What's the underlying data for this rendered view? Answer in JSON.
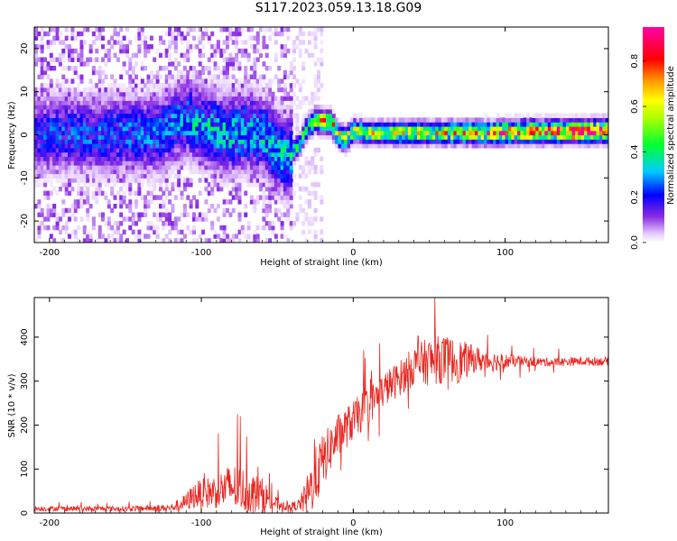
{
  "title": "S117.2023.059.13.18.G09",
  "chart_data": [
    {
      "type": "heatmap",
      "xlabel": "Height of straight line (km)",
      "ylabel": "Frequency (Hz)",
      "xlim": [
        -210,
        168
      ],
      "ylim": [
        -25,
        25
      ],
      "x_ticks": [
        -200,
        -100,
        0,
        100
      ],
      "y_ticks": [
        -20,
        -10,
        0,
        10,
        20
      ],
      "colorbar": {
        "label": "Normalized spectral amplitude",
        "range": [
          0.0,
          0.95
        ],
        "ticks": [
          "0.0",
          "0.2",
          "0.4",
          "0.6",
          "0.8"
        ],
        "colormap": "rainbow (white-purple-blue-cyan-green-yellow-orange-red-magenta)"
      },
      "ridge": {
        "x": [
          -210,
          -190,
          -170,
          -150,
          -130,
          -110,
          -100,
          -90,
          -80,
          -70,
          -60,
          -50,
          -45,
          -40,
          -35,
          -30,
          -25,
          -20,
          -15,
          -10,
          -5,
          0,
          10,
          30,
          50,
          70,
          90,
          110,
          130,
          150,
          168
        ],
        "y": [
          0,
          0.5,
          0,
          0.5,
          0,
          4,
          2,
          1,
          0,
          1,
          0,
          -3,
          -5,
          -4,
          -2,
          2,
          3.5,
          3,
          3,
          0,
          -1,
          1,
          0.5,
          0.5,
          0.5,
          0.5,
          0.5,
          0.8,
          0.8,
          0.8,
          1
        ]
      },
      "amplitude": {
        "x": [
          -210,
          -120,
          -100,
          -60,
          -40,
          -30,
          -20,
          0,
          50,
          100,
          168
        ],
        "value": [
          0.2,
          0.25,
          0.3,
          0.3,
          0.32,
          0.45,
          0.7,
          0.5,
          0.55,
          0.7,
          0.85
        ]
      }
    },
    {
      "type": "line",
      "xlabel": "Height of straight line (km)",
      "ylabel": "SNR (10 * v/v)",
      "xlim": [
        -210,
        168
      ],
      "ylim": [
        0,
        490
      ],
      "x_ticks": [
        -200,
        -100,
        0,
        100
      ],
      "y_ticks": [
        0,
        100,
        200,
        300,
        400
      ],
      "series": [
        {
          "color": "#e8251f",
          "envelope": {
            "x": [
              -210,
              -150,
              -120,
              -110,
              -105,
              -90,
              -80,
              -70,
              -60,
              -50,
              -40,
              -35,
              -30,
              -25,
              -20,
              -10,
              0,
              10,
              20,
              30,
              40,
              50,
              60,
              70,
              80,
              90,
              100,
              110,
              130,
              150,
              168
            ],
            "mean": [
              10,
              10,
              12,
              25,
              40,
              50,
              60,
              50,
              40,
              20,
              15,
              20,
              40,
              80,
              120,
              175,
              210,
              245,
              280,
              305,
              335,
              345,
              350,
              345,
              350,
              345,
              345,
              345,
              343,
              345,
              345
            ],
            "noise": [
              6,
              6,
              8,
              20,
              30,
              40,
              55,
              50,
              40,
              15,
              10,
              15,
              50,
              70,
              60,
              50,
              45,
              45,
              40,
              40,
              45,
              55,
              55,
              50,
              30,
              25,
              18,
              12,
              10,
              10,
              10
            ]
          }
        }
      ]
    }
  ]
}
